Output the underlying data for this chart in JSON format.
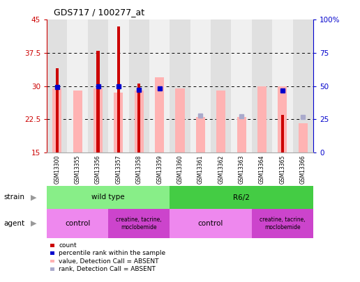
{
  "title": "GDS717 / 100277_at",
  "samples": [
    "GSM13300",
    "GSM13355",
    "GSM13356",
    "GSM13357",
    "GSM13358",
    "GSM13359",
    "GSM13360",
    "GSM13361",
    "GSM13362",
    "GSM13363",
    "GSM13364",
    "GSM13365",
    "GSM13366"
  ],
  "count_values": [
    34.0,
    null,
    38.0,
    43.5,
    30.5,
    null,
    null,
    null,
    null,
    null,
    null,
    23.5,
    null
  ],
  "pink_bar_values": [
    29.5,
    29.0,
    29.5,
    28.5,
    29.0,
    32.0,
    29.5,
    23.0,
    29.0,
    23.0,
    30.0,
    30.0,
    21.5
  ],
  "blue_square_values": [
    49.0,
    null,
    49.5,
    50.0,
    47.0,
    48.0,
    null,
    null,
    null,
    null,
    null,
    46.5,
    null
  ],
  "lavender_square_values": [
    null,
    null,
    null,
    null,
    null,
    null,
    null,
    27.5,
    null,
    27.0,
    null,
    null,
    26.5
  ],
  "ylim_left": [
    15,
    45
  ],
  "ylim_right": [
    0,
    100
  ],
  "yticks_left": [
    15,
    22.5,
    30,
    37.5,
    45
  ],
  "yticks_right": [
    0,
    25,
    50,
    75,
    100
  ],
  "ytick_labels_left": [
    "15",
    "22.5",
    "30",
    "37.5",
    "45"
  ],
  "ytick_labels_right": [
    "0",
    "25",
    "50",
    "75",
    "100%"
  ],
  "grid_values": [
    22.5,
    30,
    37.5
  ],
  "count_color": "#cc0000",
  "pink_color": "#ffb3b3",
  "blue_color": "#0000cc",
  "lavender_color": "#aaaacc",
  "wild_color": "#88ee88",
  "r62_color": "#44cc44",
  "control_color": "#ee88ee",
  "creatine_color": "#cc44cc",
  "left_axis_color": "#cc0000",
  "right_axis_color": "#0000cc",
  "col_bg_even": "#e0e0e0",
  "col_bg_odd": "#f0f0f0"
}
